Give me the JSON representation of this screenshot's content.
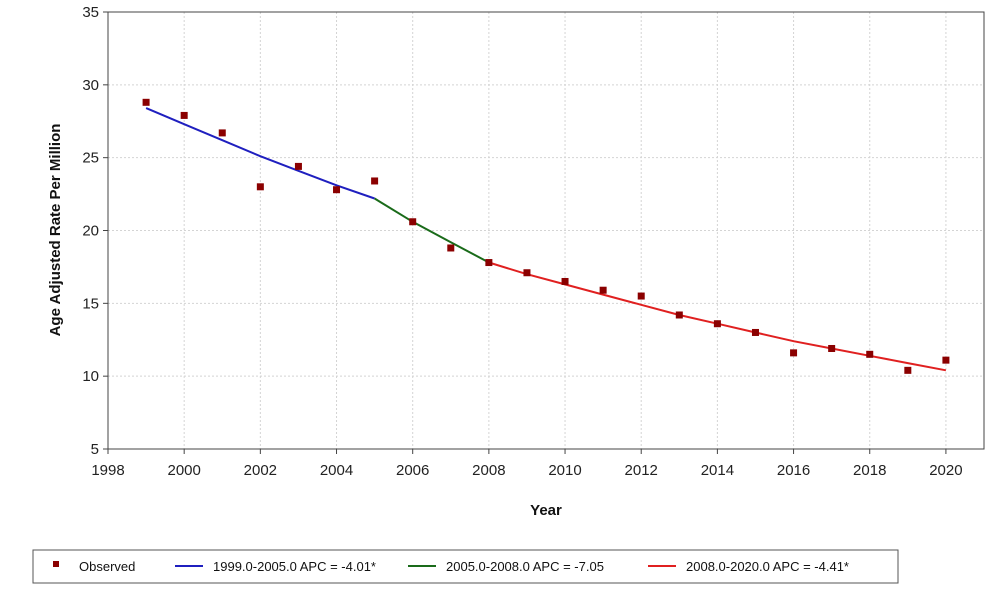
{
  "chart_data": {
    "type": "scatter",
    "xlabel": "Year",
    "ylabel": "Age Adjusted Rate Per Million",
    "xlim": [
      1998,
      2021
    ],
    "ylim": [
      5,
      35
    ],
    "x_ticks": [
      1998,
      2000,
      2002,
      2004,
      2006,
      2008,
      2010,
      2012,
      2014,
      2016,
      2018,
      2020
    ],
    "y_ticks": [
      5,
      10,
      15,
      20,
      25,
      30,
      35
    ],
    "grid": true,
    "legend_position": "bottom",
    "observed": {
      "name": "Observed",
      "color": "#8b0000",
      "points": [
        {
          "x": 1999,
          "y": 28.8
        },
        {
          "x": 2000,
          "y": 27.9
        },
        {
          "x": 2001,
          "y": 26.7
        },
        {
          "x": 2002,
          "y": 23.0
        },
        {
          "x": 2003,
          "y": 24.4
        },
        {
          "x": 2004,
          "y": 22.8
        },
        {
          "x": 2005,
          "y": 23.4
        },
        {
          "x": 2006,
          "y": 20.6
        },
        {
          "x": 2007,
          "y": 18.8
        },
        {
          "x": 2008,
          "y": 17.8
        },
        {
          "x": 2009,
          "y": 17.1
        },
        {
          "x": 2010,
          "y": 16.5
        },
        {
          "x": 2011,
          "y": 15.9
        },
        {
          "x": 2012,
          "y": 15.5
        },
        {
          "x": 2013,
          "y": 14.2
        },
        {
          "x": 2014,
          "y": 13.6
        },
        {
          "x": 2015,
          "y": 13.0
        },
        {
          "x": 2016,
          "y": 11.6
        },
        {
          "x": 2017,
          "y": 11.9
        },
        {
          "x": 2018,
          "y": 11.5
        },
        {
          "x": 2019,
          "y": 10.4
        },
        {
          "x": 2020,
          "y": 11.1
        }
      ]
    },
    "series": [
      {
        "name": "1999.0-2005.0 APC  = -4.01*",
        "color": "#1f1fbf",
        "points": [
          {
            "x": 1999,
            "y": 28.4
          },
          {
            "x": 2000,
            "y": 27.3
          },
          {
            "x": 2001,
            "y": 26.2
          },
          {
            "x": 2002,
            "y": 25.1
          },
          {
            "x": 2003,
            "y": 24.1
          },
          {
            "x": 2004,
            "y": 23.1
          },
          {
            "x": 2005,
            "y": 22.2
          }
        ]
      },
      {
        "name": "2005.0-2008.0 APC  = -7.05",
        "color": "#1a6b1a",
        "points": [
          {
            "x": 2005,
            "y": 22.2
          },
          {
            "x": 2006,
            "y": 20.6
          },
          {
            "x": 2007,
            "y": 19.2
          },
          {
            "x": 2008,
            "y": 17.8
          }
        ]
      },
      {
        "name": "2008.0-2020.0 APC  = -4.41*",
        "color": "#e02020",
        "points": [
          {
            "x": 2008,
            "y": 17.8
          },
          {
            "x": 2009,
            "y": 17.0
          },
          {
            "x": 2010,
            "y": 16.3
          },
          {
            "x": 2011,
            "y": 15.6
          },
          {
            "x": 2012,
            "y": 14.9
          },
          {
            "x": 2013,
            "y": 14.2
          },
          {
            "x": 2014,
            "y": 13.6
          },
          {
            "x": 2015,
            "y": 13.0
          },
          {
            "x": 2016,
            "y": 12.4
          },
          {
            "x": 2017,
            "y": 11.9
          },
          {
            "x": 2018,
            "y": 11.4
          },
          {
            "x": 2019,
            "y": 10.9
          },
          {
            "x": 2020,
            "y": 10.4
          }
        ]
      }
    ]
  }
}
